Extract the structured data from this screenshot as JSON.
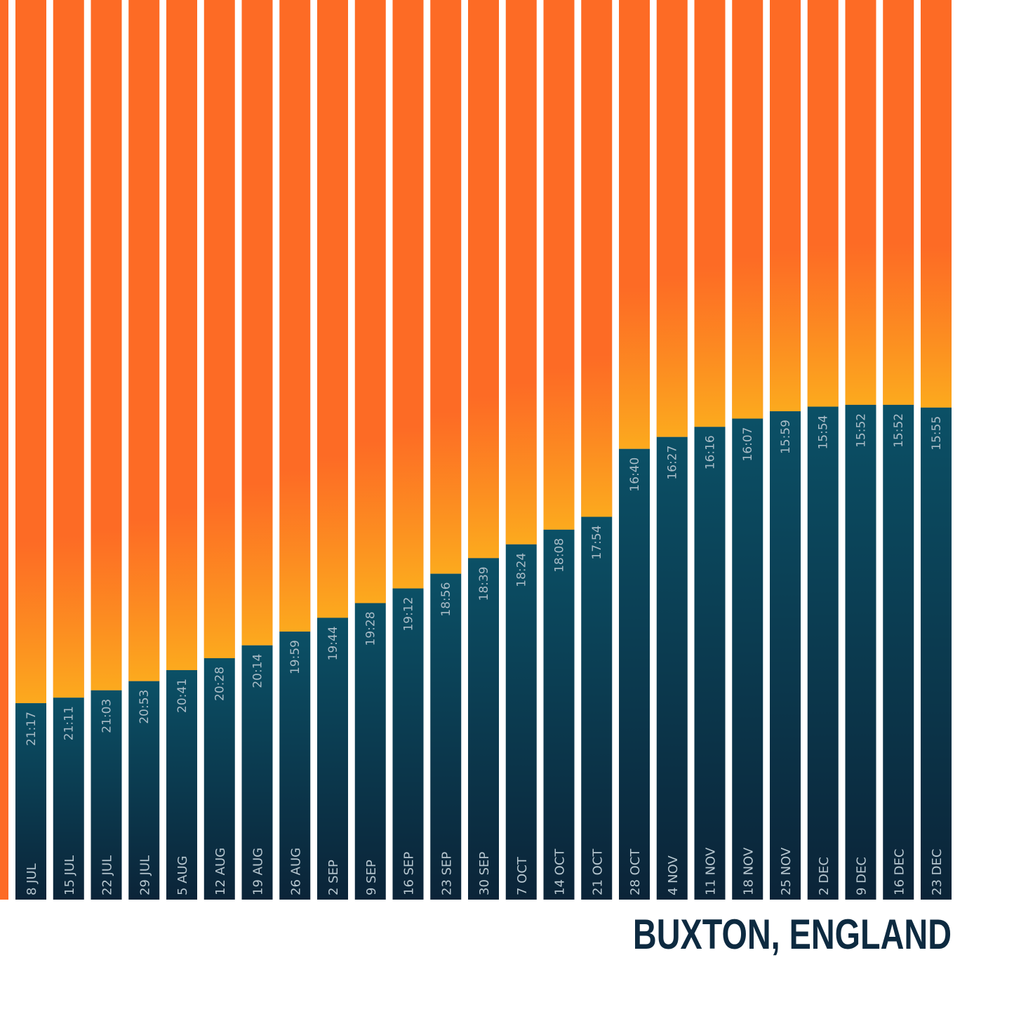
{
  "chart_data": {
    "type": "bar",
    "title": "BUXTON, ENGLAND",
    "categories": [
      "8 JUL",
      "15 JUL",
      "22 JUL",
      "29 JUL",
      "5 AUG",
      "12 AUG",
      "19 AUG",
      "26 AUG",
      "2 SEP",
      "9 SEP",
      "16 SEP",
      "23 SEP",
      "30 SEP",
      "7 OCT",
      "14 OCT",
      "21 OCT",
      "28 OCT",
      "4 NOV",
      "11 NOV",
      "18 NOV",
      "25 NOV",
      "2 DEC",
      "9 DEC",
      "16 DEC",
      "23 DEC"
    ],
    "values": [
      1277,
      1271,
      1263,
      1253,
      1241,
      1228,
      1214,
      1199,
      1184,
      1168,
      1152,
      1136,
      1119,
      1104,
      1088,
      1074,
      1000,
      987,
      976,
      967,
      959,
      954,
      952,
      952,
      955
    ],
    "value_labels": [
      "21:17",
      "21:11",
      "21:03",
      "20:53",
      "20:41",
      "20:28",
      "20:14",
      "19:59",
      "19:44",
      "19:28",
      "19:12",
      "18:56",
      "18:39",
      "18:24",
      "18:08",
      "17:54",
      "16:40",
      "16:27",
      "16:16",
      "16:07",
      "15:59",
      "15:54",
      "15:52",
      "15:52",
      "15:55"
    ],
    "ylim": [
      1491,
      511
    ],
    "color": "#0b4259",
    "top_color": "#fd6b25"
  }
}
